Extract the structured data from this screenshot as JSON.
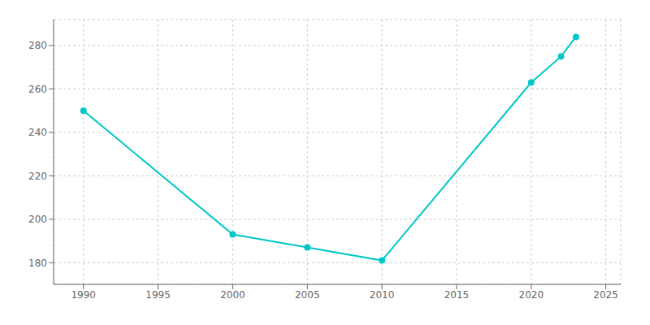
{
  "chart_data": {
    "type": "line",
    "x": [
      1990,
      2000,
      2005,
      2010,
      2020,
      2022,
      2023
    ],
    "values": [
      250,
      193,
      187,
      181,
      263,
      275,
      284
    ],
    "color": "#00C8C8",
    "marker": "o",
    "xlim": [
      1988,
      2026
    ],
    "ylim": [
      170,
      292
    ],
    "xticks": [
      1990,
      1995,
      2000,
      2005,
      2010,
      2015,
      2020,
      2025
    ],
    "yticks": [
      180,
      200,
      220,
      240,
      260,
      280
    ],
    "grid": true
  }
}
